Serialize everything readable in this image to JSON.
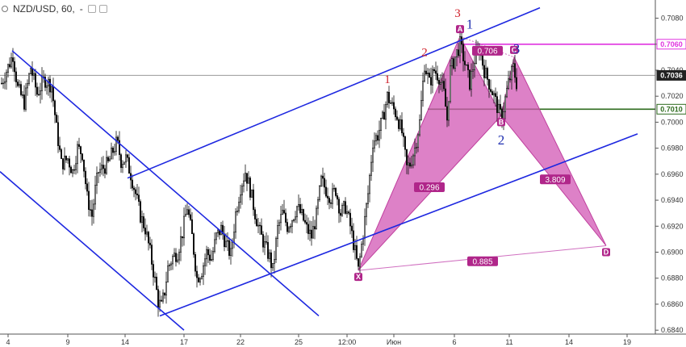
{
  "header": {
    "symbol": "NZD/USD, 60,",
    "change": "-"
  },
  "colors": {
    "candle": "#111111",
    "channel": "#1e28e0",
    "pattern_fill": "#d257b4",
    "magenta_level": "#e033e0",
    "green_level": "#2e6b1e",
    "gray_level": "#9a9a9a",
    "point_badge": "#b0268a"
  },
  "chart_data": {
    "type": "candlestick",
    "symbol": "NZD/USD",
    "timeframe": "60",
    "ylim": [
      0.6837,
      0.7094
    ],
    "xlim": [
      0,
      850
    ],
    "y_ticks": [
      0.708,
      0.706,
      0.704,
      0.702,
      0.7,
      0.698,
      0.696,
      0.694,
      0.692,
      0.69,
      0.688,
      0.686,
      0.684
    ],
    "x_tick_labels": [
      "4",
      "9",
      "14",
      "17",
      "22",
      "25",
      "12:00",
      "Июн",
      "6",
      "11",
      "14",
      "19"
    ],
    "x_tick_positions": [
      10,
      84,
      155,
      228,
      298,
      370,
      430,
      488,
      563,
      631,
      705,
      777
    ],
    "price_tags": [
      {
        "value": 0.706,
        "label": "0.7060",
        "style": "magenta"
      },
      {
        "value": 0.7036,
        "label": "0.7036",
        "style": "current"
      },
      {
        "value": 0.701,
        "label": "0.7010",
        "style": "green"
      }
    ],
    "close_path": [
      [
        2,
        0.703
      ],
      [
        16,
        0.7052
      ],
      [
        22,
        0.7026
      ],
      [
        30,
        0.7015
      ],
      [
        38,
        0.7042
      ],
      [
        46,
        0.7022
      ],
      [
        55,
        0.7033
      ],
      [
        64,
        0.7028
      ],
      [
        70,
        0.6995
      ],
      [
        76,
        0.6968
      ],
      [
        84,
        0.6972
      ],
      [
        90,
        0.6962
      ],
      [
        96,
        0.698
      ],
      [
        102,
        0.6976
      ],
      [
        108,
        0.6942
      ],
      [
        114,
        0.6928
      ],
      [
        118,
        0.6948
      ],
      [
        122,
        0.6962
      ],
      [
        128,
        0.6965
      ],
      [
        134,
        0.6968
      ],
      [
        140,
        0.6978
      ],
      [
        145,
        0.6985
      ],
      [
        150,
        0.697
      ],
      [
        156,
        0.6972
      ],
      [
        162,
        0.696
      ],
      [
        168,
        0.6945
      ],
      [
        174,
        0.6928
      ],
      [
        180,
        0.6918
      ],
      [
        186,
        0.69
      ],
      [
        192,
        0.6878
      ],
      [
        196,
        0.6862
      ],
      [
        200,
        0.6858
      ],
      [
        204,
        0.687
      ],
      [
        208,
        0.6888
      ],
      [
        214,
        0.6896
      ],
      [
        220,
        0.69
      ],
      [
        226,
        0.6915
      ],
      [
        232,
        0.6935
      ],
      [
        238,
        0.6912
      ],
      [
        244,
        0.688
      ],
      [
        250,
        0.6886
      ],
      [
        256,
        0.69
      ],
      [
        262,
        0.6895
      ],
      [
        268,
        0.6912
      ],
      [
        274,
        0.6918
      ],
      [
        280,
        0.6906
      ],
      [
        286,
        0.6898
      ],
      [
        292,
        0.693
      ],
      [
        298,
        0.695
      ],
      [
        304,
        0.6962
      ],
      [
        310,
        0.6948
      ],
      [
        316,
        0.693
      ],
      [
        322,
        0.6915
      ],
      [
        328,
        0.6905
      ],
      [
        334,
        0.6896
      ],
      [
        338,
        0.6886
      ],
      [
        344,
        0.6918
      ],
      [
        350,
        0.693
      ],
      [
        356,
        0.692
      ],
      [
        362,
        0.6926
      ],
      [
        368,
        0.6935
      ],
      [
        374,
        0.6928
      ],
      [
        380,
        0.6918
      ],
      [
        386,
        0.6912
      ],
      [
        392,
        0.6928
      ],
      [
        398,
        0.6955
      ],
      [
        404,
        0.6948
      ],
      [
        410,
        0.6942
      ],
      [
        416,
        0.6948
      ],
      [
        422,
        0.693
      ],
      [
        428,
        0.6935
      ],
      [
        434,
        0.692
      ],
      [
        440,
        0.69
      ],
      [
        444,
        0.6886
      ],
      [
        450,
        0.6915
      ],
      [
        456,
        0.6945
      ],
      [
        462,
        0.6985
      ],
      [
        468,
        0.699
      ],
      [
        474,
        0.7002
      ],
      [
        480,
        0.702
      ],
      [
        486,
        0.7012
      ],
      [
        492,
        0.7005
      ],
      [
        498,
        0.6992
      ],
      [
        504,
        0.6965
      ],
      [
        508,
        0.6968
      ],
      [
        514,
        0.698
      ],
      [
        520,
        0.7
      ],
      [
        526,
        0.7045
      ],
      [
        532,
        0.703
      ],
      [
        538,
        0.704
      ],
      [
        544,
        0.7035
      ],
      [
        550,
        0.7022
      ],
      [
        554,
        0.7002
      ],
      [
        558,
        0.704
      ],
      [
        564,
        0.705
      ],
      [
        570,
        0.706
      ],
      [
        576,
        0.7045
      ],
      [
        582,
        0.703
      ],
      [
        588,
        0.7048
      ],
      [
        594,
        0.7056
      ],
      [
        600,
        0.704
      ],
      [
        606,
        0.703
      ],
      [
        612,
        0.702
      ],
      [
        618,
        0.7008
      ],
      [
        622,
        0.7004
      ],
      [
        626,
        0.7018
      ],
      [
        630,
        0.703
      ],
      [
        636,
        0.7042
      ],
      [
        640,
        0.703
      ]
    ],
    "harmonic_pattern": {
      "points": [
        {
          "label": "X",
          "x": 444,
          "y": 0.6886
        },
        {
          "label": "A",
          "x": 570,
          "y": 0.7066
        },
        {
          "label": "B",
          "x": 621,
          "y": 0.7005
        },
        {
          "label": "C",
          "x": 637,
          "y": 0.705
        },
        {
          "label": "D",
          "x": 751,
          "y": 0.6905
        }
      ],
      "ratios": [
        {
          "label": "0.296",
          "x": 532,
          "y": 0.695
        },
        {
          "label": "0.706",
          "x": 604,
          "y": 0.7055
        },
        {
          "label": "3.809",
          "x": 688,
          "y": 0.6956
        },
        {
          "label": "0.885",
          "x": 598,
          "y": 0.6893
        }
      ]
    },
    "channels": [
      {
        "from": [
          15,
          0.7055
        ],
        "to": [
          395,
          0.6851
        ]
      },
      {
        "from": [
          0,
          0.6962
        ],
        "to": [
          228,
          0.684
        ]
      },
      {
        "from": [
          158,
          0.6957
        ],
        "to": [
          669,
          0.7088
        ]
      },
      {
        "from": [
          198,
          0.6851
        ],
        "to": [
          790,
          0.6991
        ]
      }
    ],
    "wave_labels": [
      {
        "text": "1",
        "x": 480,
        "y": 0.703,
        "color": "red"
      },
      {
        "text": "2",
        "x": 526,
        "y": 0.7051,
        "color": "red"
      },
      {
        "text": "3",
        "x": 567,
        "y": 0.7081,
        "color": "red"
      },
      {
        "text": "1",
        "x": 582,
        "y": 0.7072,
        "color": "blue"
      },
      {
        "text": "3",
        "x": 640,
        "y": 0.7053,
        "color": "blue"
      },
      {
        "text": "2",
        "x": 621,
        "y": 0.6983,
        "color": "blue"
      }
    ]
  }
}
